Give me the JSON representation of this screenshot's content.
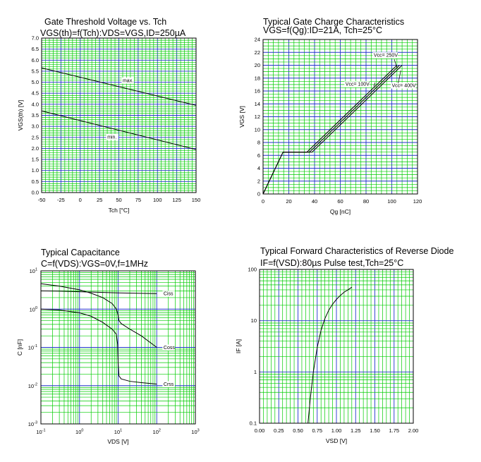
{
  "chart_data": [
    {
      "type": "line",
      "title": "Gate Threshold Voltage vs. Tch",
      "subtitle": "VGS(th)=f(Tch):VDS=VGS,ID=250µA",
      "xlabel": "Tch [°C]",
      "ylabel": "VGS(th) [V]",
      "xlim": [
        -50,
        150
      ],
      "ylim": [
        0,
        7
      ],
      "xticks": [
        "-50",
        "-25",
        "0",
        "25",
        "50",
        "75",
        "100",
        "125",
        "150"
      ],
      "yticks": [
        "0.0",
        "0.5",
        "1.0",
        "1.5",
        "2.0",
        "2.5",
        "3.0",
        "3.5",
        "4.0",
        "4.5",
        "5.0",
        "5.5",
        "6.0",
        "6.5",
        "7.0"
      ],
      "grid": true,
      "series": [
        {
          "name": "max.",
          "x": [
            -50,
            150
          ],
          "y": [
            5.65,
            3.95
          ]
        },
        {
          "name": "min.",
          "x": [
            -50,
            150
          ],
          "y": [
            3.7,
            1.95
          ]
        }
      ]
    },
    {
      "type": "line",
      "title": "Typical Gate Charge Characteristics",
      "subtitle": "VGS=f(Qg):ID=21A, Tch=25°C",
      "xlabel": "Qg [nC]",
      "ylabel": "VGS [V]",
      "xlim": [
        0,
        120
      ],
      "ylim": [
        0,
        24
      ],
      "xticks": [
        "0",
        "20",
        "40",
        "60",
        "80",
        "100",
        "120"
      ],
      "yticks": [
        "0",
        "2",
        "4",
        "6",
        "8",
        "10",
        "12",
        "14",
        "16",
        "18",
        "20",
        "22",
        "24"
      ],
      "grid": true,
      "series": [
        {
          "name": "Vcc= 100V",
          "x": [
            0,
            15.5,
            34,
            104
          ],
          "y": [
            0,
            6.5,
            6.5,
            20
          ]
        },
        {
          "name": "Vcc= 250V",
          "x": [
            0,
            15.5,
            36,
            106
          ],
          "y": [
            0,
            6.5,
            6.5,
            20
          ]
        },
        {
          "name": "Vcc= 400V",
          "x": [
            0,
            15.5,
            38,
            108
          ],
          "y": [
            0,
            6.5,
            6.5,
            20
          ]
        }
      ]
    },
    {
      "type": "line",
      "title": "Typical Capacitance",
      "subtitle": "C=f(VDS):VGS=0V,f=1MHz",
      "xlabel": "VDS [V]",
      "ylabel": "C [nF]",
      "xscale": "log",
      "yscale": "log",
      "xlim": [
        0.1,
        1000
      ],
      "ylim": [
        0.001,
        10
      ],
      "xticks": [
        {
          "base": "10",
          "exp": "-1"
        },
        {
          "base": "10",
          "exp": "0"
        },
        {
          "base": "10",
          "exp": "1"
        },
        {
          "base": "10",
          "exp": "2"
        },
        {
          "base": "10",
          "exp": "3"
        }
      ],
      "yticks": [
        {
          "base": "10",
          "exp": "-3"
        },
        {
          "base": "10",
          "exp": "-2"
        },
        {
          "base": "10",
          "exp": "-1"
        },
        {
          "base": "10",
          "exp": "0"
        },
        {
          "base": "10",
          "exp": "1"
        }
      ],
      "grid": true,
      "series": [
        {
          "name": "Ciss",
          "x": [
            0.1,
            0.3,
            1,
            3,
            10,
            30,
            100
          ],
          "y": [
            3.0,
            2.95,
            2.85,
            2.75,
            2.65,
            2.6,
            2.55
          ]
        },
        {
          "name": "Coss",
          "x": [
            0.1,
            0.3,
            1,
            2,
            4,
            7,
            9,
            10,
            10.5,
            12,
            20,
            40,
            100
          ],
          "y": [
            4.6,
            4.0,
            3.2,
            2.6,
            2.0,
            1.4,
            1.0,
            0.7,
            0.5,
            0.42,
            0.3,
            0.2,
            0.1
          ]
        },
        {
          "name": "Crss",
          "x": [
            0.1,
            0.3,
            1,
            2,
            4,
            7,
            9,
            9.7,
            10,
            10.5,
            12,
            20,
            40,
            100
          ],
          "y": [
            1.0,
            0.95,
            0.8,
            0.65,
            0.45,
            0.3,
            0.22,
            0.12,
            0.04,
            0.018,
            0.015,
            0.013,
            0.012,
            0.011
          ]
        }
      ]
    },
    {
      "type": "line",
      "title": "Typical Forward Characteristics of Reverse Diode",
      "subtitle": "IF=f(VSD):80µs Pulse test,Tch=25°C",
      "xlabel": "VSD [V]",
      "ylabel": "IF [A]",
      "yscale": "log",
      "xlim": [
        0,
        2
      ],
      "ylim": [
        0.1,
        100
      ],
      "xticks": [
        "0.00",
        "0.25",
        "0.50",
        "0.75",
        "1.00",
        "1.25",
        "1.50",
        "1.75",
        "2.00"
      ],
      "yticks": [
        "0.1",
        "1",
        "10",
        "100"
      ],
      "grid": true,
      "series": [
        {
          "name": "",
          "x": [
            0.63,
            0.66,
            0.7,
            0.75,
            0.8,
            0.85,
            0.9,
            0.95,
            1.0,
            1.05,
            1.1,
            1.15,
            1.2
          ],
          "y": [
            0.1,
            0.3,
            1.0,
            3.0,
            6.5,
            11,
            16,
            21,
            26,
            31,
            36,
            40,
            45
          ]
        }
      ]
    }
  ]
}
